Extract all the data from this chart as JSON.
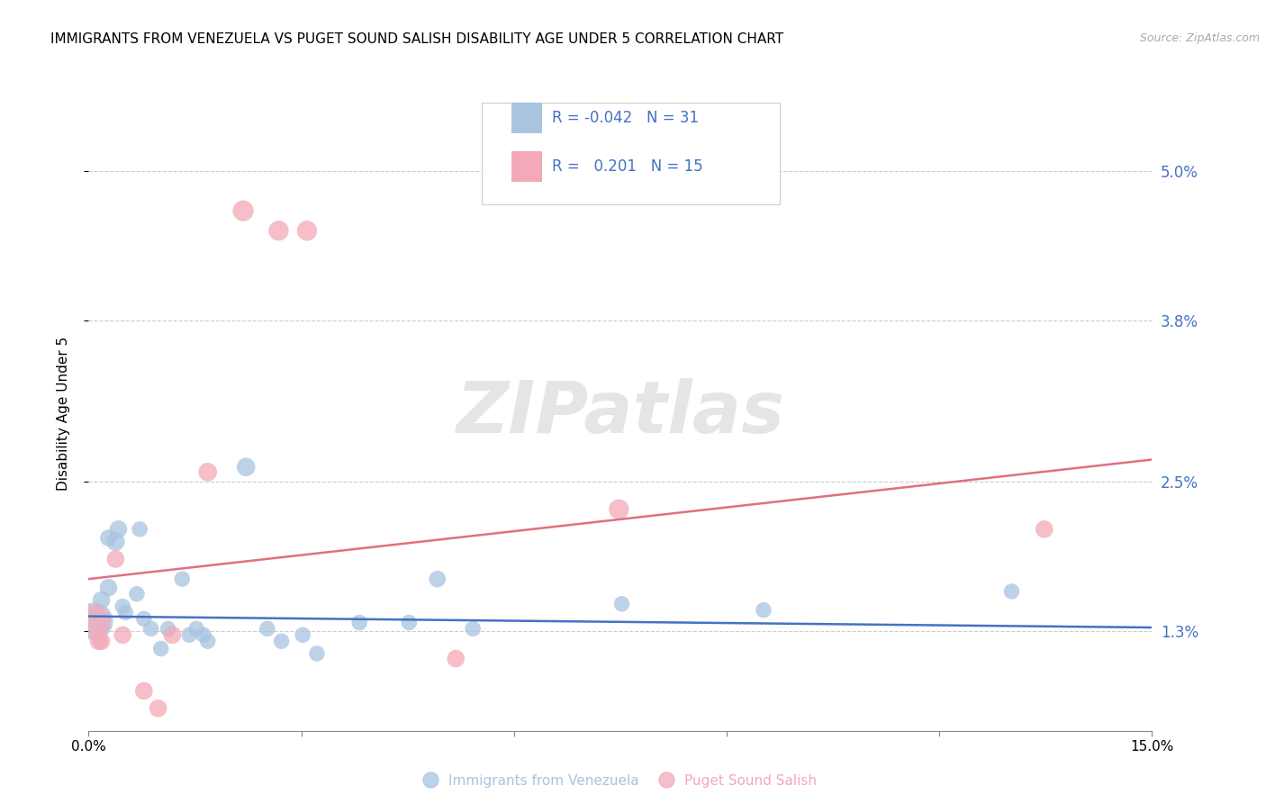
{
  "title": "IMMIGRANTS FROM VENEZUELA VS PUGET SOUND SALISH DISABILITY AGE UNDER 5 CORRELATION CHART",
  "source": "Source: ZipAtlas.com",
  "ylabel": "Disability Age Under 5",
  "ytick_values": [
    1.3,
    2.5,
    3.8,
    5.0
  ],
  "xlim": [
    0.0,
    15.0
  ],
  "ylim": [
    0.5,
    5.6
  ],
  "blue_R": "-0.042",
  "blue_N": "31",
  "pink_R": "0.201",
  "pink_N": "15",
  "blue_color": "#a8c4e0",
  "pink_color": "#f4a8b8",
  "blue_line_color": "#4472c4",
  "pink_line_color": "#e07080",
  "legend_text_color": "#4472c4",
  "right_axis_color": "#4472c4",
  "blue_points": [
    [
      0.08,
      1.38,
      900
    ],
    [
      0.18,
      1.55,
      200
    ],
    [
      0.28,
      1.65,
      200
    ],
    [
      0.28,
      2.05,
      180
    ],
    [
      0.38,
      2.02,
      220
    ],
    [
      0.42,
      2.12,
      200
    ],
    [
      0.48,
      1.5,
      160
    ],
    [
      0.52,
      1.45,
      160
    ],
    [
      0.68,
      1.6,
      160
    ],
    [
      0.72,
      2.12,
      160
    ],
    [
      0.78,
      1.4,
      160
    ],
    [
      0.88,
      1.32,
      160
    ],
    [
      1.02,
      1.16,
      160
    ],
    [
      1.12,
      1.32,
      160
    ],
    [
      1.32,
      1.72,
      160
    ],
    [
      1.42,
      1.27,
      160
    ],
    [
      1.52,
      1.32,
      160
    ],
    [
      1.62,
      1.27,
      160
    ],
    [
      1.68,
      1.22,
      160
    ],
    [
      2.22,
      2.62,
      220
    ],
    [
      2.52,
      1.32,
      160
    ],
    [
      2.72,
      1.22,
      160
    ],
    [
      3.02,
      1.27,
      160
    ],
    [
      3.22,
      1.12,
      160
    ],
    [
      3.82,
      1.37,
      160
    ],
    [
      4.52,
      1.37,
      160
    ],
    [
      4.92,
      1.72,
      180
    ],
    [
      5.42,
      1.32,
      160
    ],
    [
      7.52,
      1.52,
      160
    ],
    [
      9.52,
      1.47,
      160
    ],
    [
      13.02,
      1.62,
      160
    ]
  ],
  "pink_points": [
    [
      0.08,
      1.38,
      700
    ],
    [
      0.14,
      1.22,
      200
    ],
    [
      0.18,
      1.22,
      200
    ],
    [
      0.38,
      1.88,
      200
    ],
    [
      0.48,
      1.27,
      200
    ],
    [
      0.78,
      0.82,
      200
    ],
    [
      0.98,
      0.68,
      200
    ],
    [
      1.18,
      1.27,
      200
    ],
    [
      1.68,
      2.58,
      220
    ],
    [
      2.18,
      4.68,
      280
    ],
    [
      2.68,
      4.52,
      260
    ],
    [
      3.08,
      4.52,
      260
    ],
    [
      5.18,
      1.08,
      200
    ],
    [
      7.48,
      2.28,
      260
    ],
    [
      13.48,
      2.12,
      200
    ]
  ],
  "blue_line_x": [
    0.0,
    15.0
  ],
  "blue_line_y": [
    1.42,
    1.33
  ],
  "pink_line_x": [
    0.0,
    15.0
  ],
  "pink_line_y": [
    1.72,
    2.68
  ],
  "background_color": "#ffffff",
  "grid_color": "#cccccc",
  "watermark": "ZIPatlas"
}
